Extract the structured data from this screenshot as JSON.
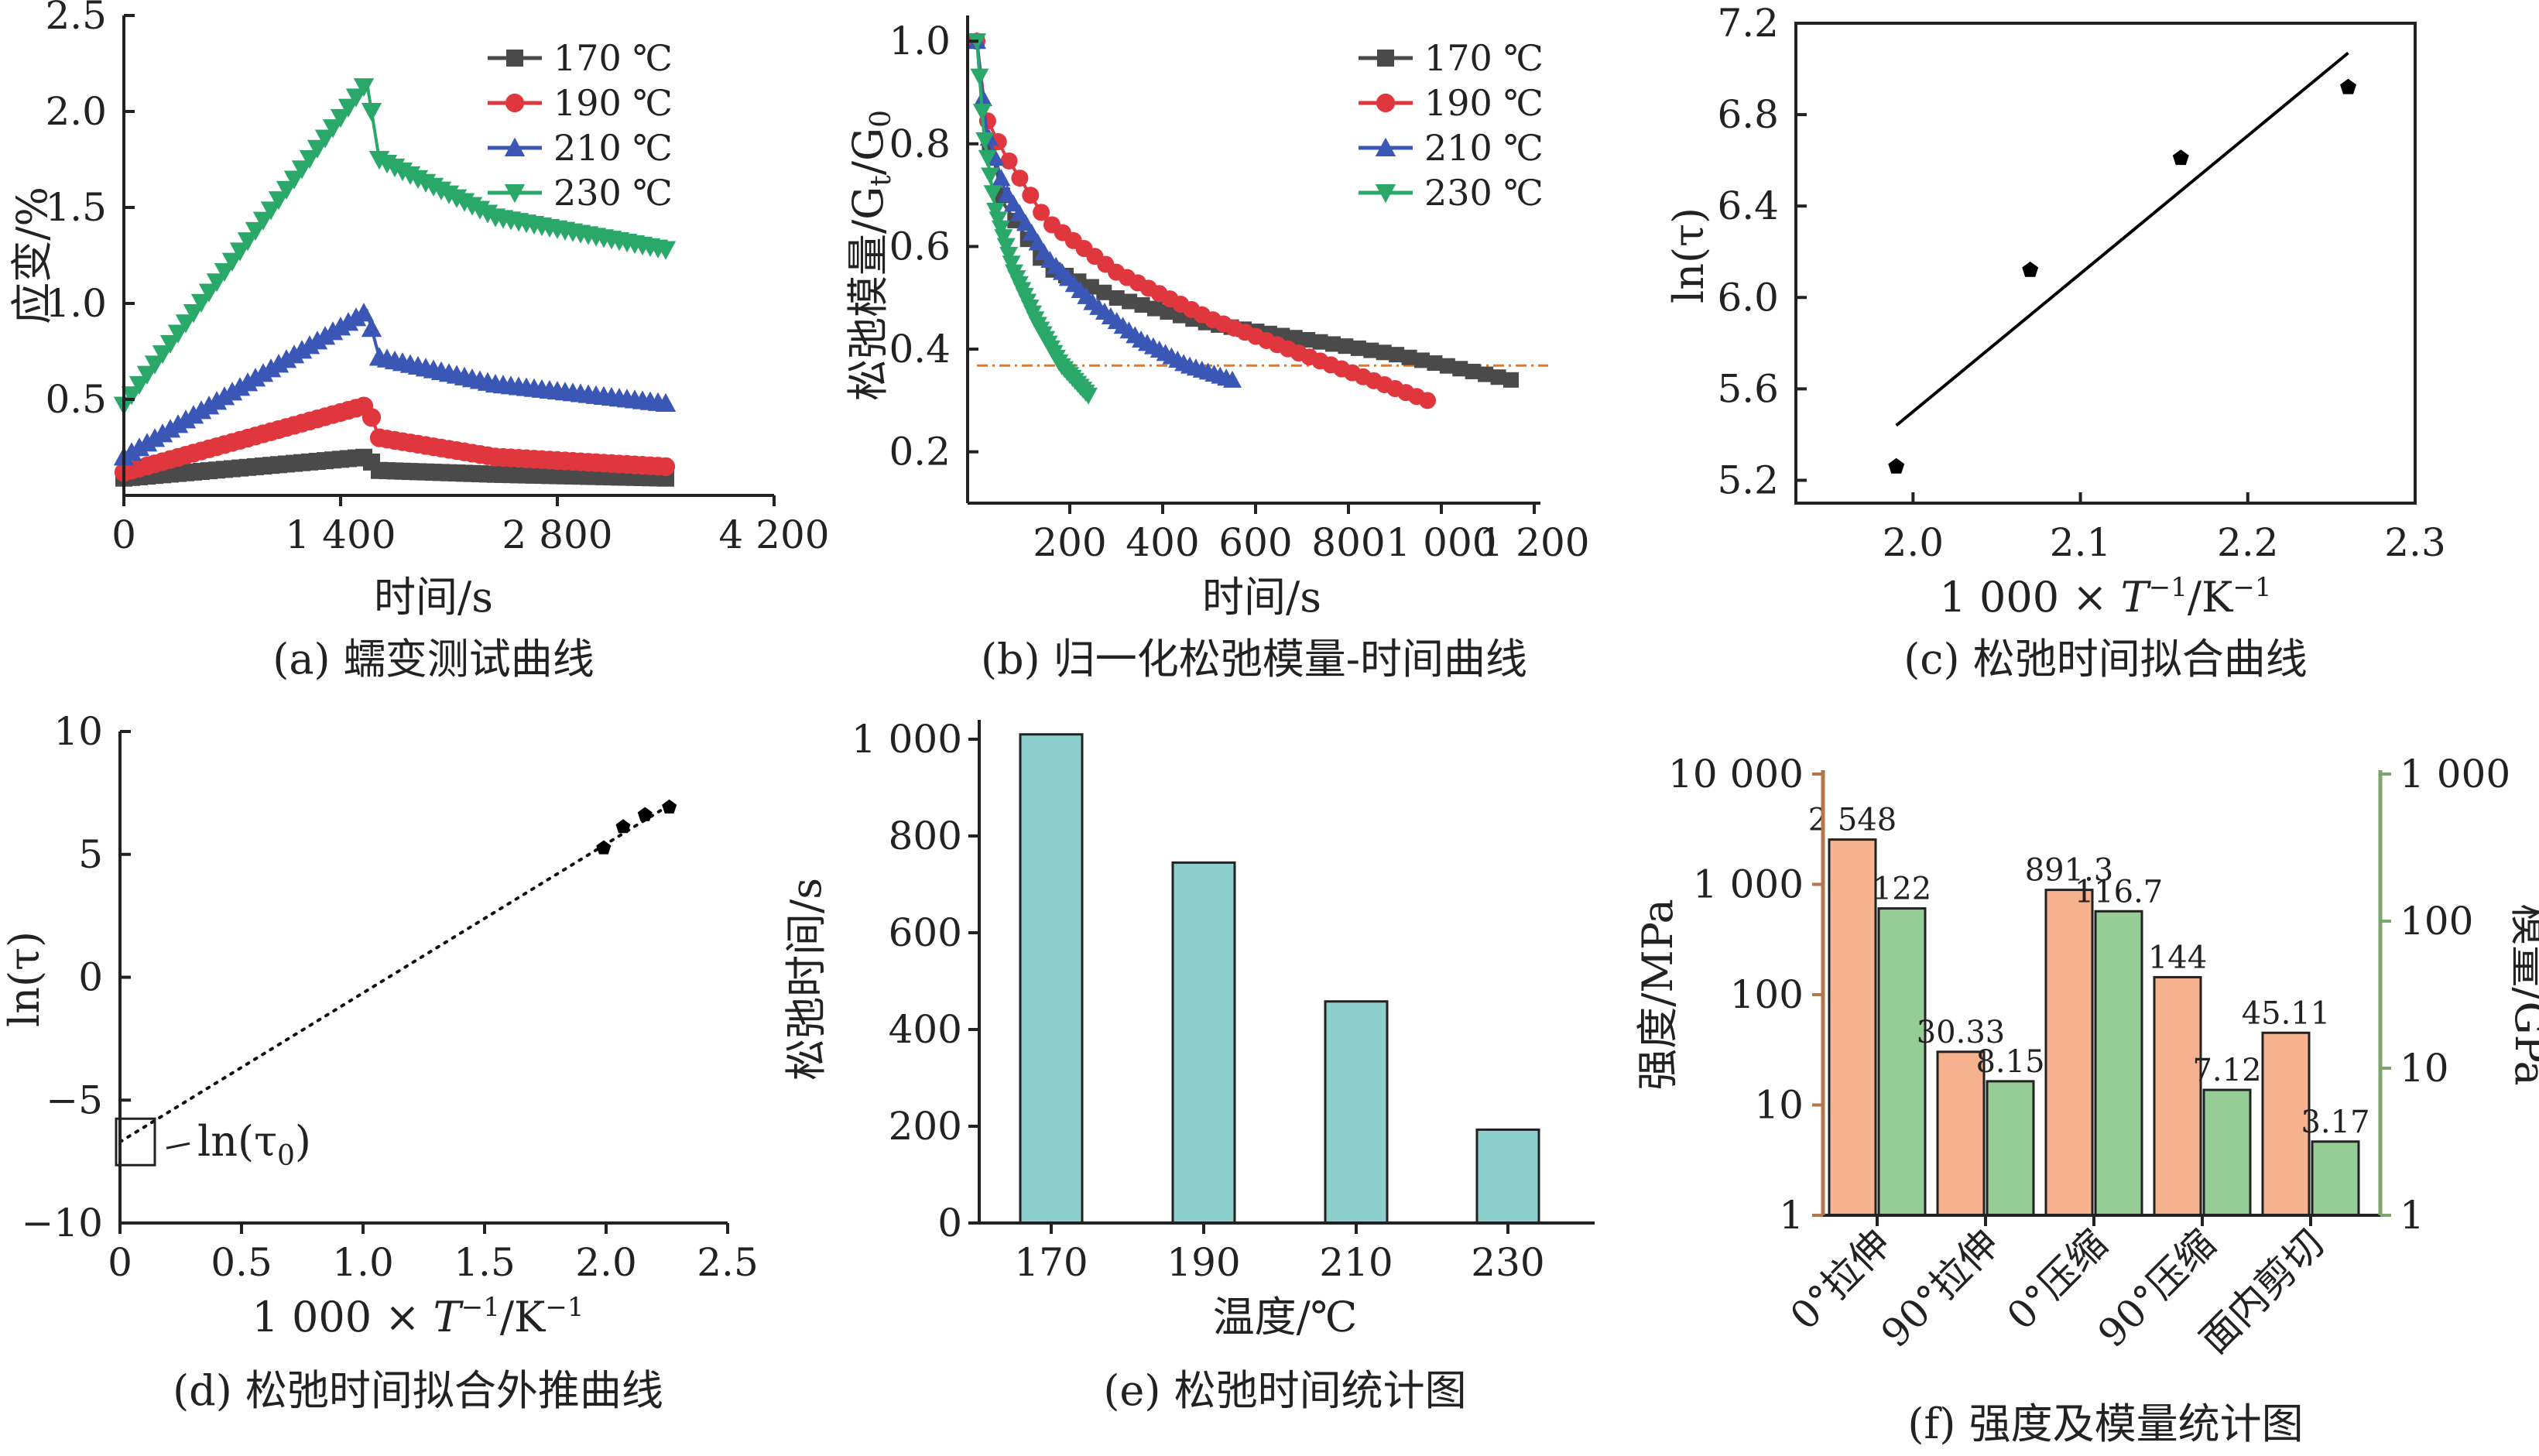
{
  "colors": {
    "s170": "#4a4a4a",
    "s190": "#e0363e",
    "s210": "#3a57b6",
    "s230": "#2aa86a",
    "bar_e": "#8ccfcc",
    "bar_strength": "#f6b28e",
    "bar_modulus": "#96cc95",
    "ref_line": "#e87722"
  },
  "panels": {
    "a": {
      "caption": "(a) 蠕变测试曲线",
      "xlabel": "时间/s",
      "ylabel": "应变/%",
      "xticks": [
        "0",
        "1 400",
        "2 800",
        "4 200"
      ],
      "yticks": [
        "0.5",
        "1.0",
        "1.5",
        "2.0",
        "2.5"
      ],
      "legend": [
        "170 ℃",
        "190 ℃",
        "210 ℃",
        "230 ℃"
      ]
    },
    "b": {
      "caption": "(b) 归一化松弛模量-时间曲线",
      "xlabel": "时间/s",
      "ylabel": "松弛模量/Gt/G0",
      "ylabel_main": "松弛模量/G",
      "ylabel_sub1": "t",
      "ylabel_mid": "/G",
      "ylabel_sub2": "0",
      "xticks": [
        "200",
        "400",
        "600",
        "800",
        "1 000",
        "1 200"
      ],
      "yticks": [
        "0.2",
        "0.4",
        "0.6",
        "0.8",
        "1.0"
      ],
      "legend": [
        "170 ℃",
        "190 ℃",
        "210 ℃",
        "230 ℃"
      ]
    },
    "c": {
      "caption": "(c) 松弛时间拟合曲线",
      "xlabel": "1 000 × T⁻¹/K⁻¹",
      "ylabel": "ln(τ)",
      "xlabel_pre": "1 000 × ",
      "xlabel_T": "T",
      "xlabel_sup": "−1",
      "xlabel_post": "/K",
      "xlabel_sup2": "−1",
      "xticks": [
        "2.0",
        "2.1",
        "2.2",
        "2.3"
      ],
      "yticks": [
        "5.2",
        "5.6",
        "6.0",
        "6.4",
        "6.8",
        "7.2"
      ]
    },
    "d": {
      "caption": "(d) 松弛时间拟合外推曲线",
      "xlabel": "1 000 × T⁻¹/K⁻¹",
      "ylabel": "ln(τ)",
      "xlabel_pre": "1 000 × ",
      "xlabel_T": "T",
      "xlabel_sup": "−1",
      "xlabel_post": "/K",
      "xlabel_sup2": "−1",
      "xticks": [
        "0",
        "0.5",
        "1.0",
        "1.5",
        "2.0",
        "2.5"
      ],
      "yticks": [
        "10",
        "5",
        "0",
        "−5",
        "−10"
      ],
      "annotation": "ln(τ0)",
      "annotation_main": "ln(τ",
      "annotation_sub": "0",
      "annotation_end": ")"
    },
    "e": {
      "caption": "(e) 松弛时间统计图",
      "xlabel": "温度/℃",
      "ylabel": "松弛时间/s",
      "xticks": [
        "170",
        "190",
        "210",
        "230"
      ],
      "yticks": [
        "0",
        "200",
        "400",
        "600",
        "800",
        "1 000"
      ]
    },
    "f": {
      "caption": "(f) 强度及模量统计图",
      "ylabel_left": "强度/MPa",
      "ylabel_right": "模量/GPa",
      "yticks_left": [
        "1",
        "10",
        "100",
        "1 000",
        "10 000"
      ],
      "yticks_right": [
        "1",
        "10",
        "100",
        "1 000"
      ],
      "data_labels_strength": [
        "2 548",
        "30.33",
        "891.3",
        "144",
        "45.11"
      ],
      "data_labels_modulus": [
        "122",
        "8.15",
        "116.7",
        "7.12",
        "3.17"
      ]
    }
  },
  "chart_data": [
    {
      "type": "line",
      "title": "(a) 蠕变测试曲线",
      "xlabel": "时间/s",
      "ylabel": "应变/%",
      "xlim": [
        0,
        4200
      ],
      "ylim": [
        0,
        2.5
      ],
      "series": [
        {
          "name": "170 ℃",
          "x": [
            0,
            1570,
            1650,
            2400,
            3500
          ],
          "y": [
            0.09,
            0.2,
            0.13,
            0.11,
            0.09
          ]
        },
        {
          "name": "190 ℃",
          "x": [
            0,
            1570,
            1650,
            2400,
            3500
          ],
          "y": [
            0.12,
            0.47,
            0.3,
            0.2,
            0.15
          ]
        },
        {
          "name": "210 ℃",
          "x": [
            0,
            1570,
            1650,
            2400,
            3500
          ],
          "y": [
            0.2,
            0.96,
            0.72,
            0.58,
            0.48
          ]
        },
        {
          "name": "230 ℃",
          "x": [
            0,
            1570,
            1650,
            2400,
            3500
          ],
          "y": [
            0.47,
            2.15,
            1.75,
            1.45,
            1.28
          ]
        }
      ]
    },
    {
      "type": "line",
      "title": "(b) 归一化松弛模量-时间曲线",
      "xlabel": "时间/s",
      "ylabel": "松弛模量/Gt/G0",
      "xlim": [
        0,
        1200
      ],
      "ylim": [
        0.1,
        1.05
      ],
      "reference_line_y": 0.368,
      "series": [
        {
          "name": "170 ℃",
          "x": [
            0,
            20,
            60,
            150,
            300,
            500,
            700,
            900,
            1150
          ],
          "y": [
            1.0,
            0.83,
            0.68,
            0.56,
            0.5,
            0.45,
            0.42,
            0.39,
            0.34
          ]
        },
        {
          "name": "190 ℃",
          "x": [
            0,
            20,
            60,
            150,
            300,
            500,
            700,
            850,
            970
          ],
          "y": [
            1.0,
            0.85,
            0.78,
            0.65,
            0.55,
            0.46,
            0.39,
            0.34,
            0.3
          ]
        },
        {
          "name": "210 ℃",
          "x": [
            0,
            20,
            60,
            150,
            250,
            350,
            450,
            550
          ],
          "y": [
            1.0,
            0.83,
            0.71,
            0.58,
            0.49,
            0.42,
            0.37,
            0.34
          ]
        },
        {
          "name": "230 ℃",
          "x": [
            0,
            15,
            40,
            80,
            130,
            180,
            240
          ],
          "y": [
            1.0,
            0.82,
            0.67,
            0.55,
            0.45,
            0.37,
            0.31
          ]
        }
      ]
    },
    {
      "type": "scatter",
      "title": "(c) 松弛时间拟合曲线",
      "xlabel": "1 000 × T⁻¹/K⁻¹",
      "ylabel": "ln(τ)",
      "xlim": [
        1.93,
        2.3
      ],
      "ylim": [
        5.1,
        7.2
      ],
      "points": {
        "x": [
          1.99,
          2.07,
          2.16,
          2.26
        ],
        "y": [
          5.26,
          6.12,
          6.61,
          6.92
        ]
      },
      "fit_line": {
        "x": [
          1.99,
          2.26
        ],
        "y": [
          5.44,
          7.07
        ]
      }
    },
    {
      "type": "scatter",
      "title": "(d) 松弛时间拟合外推曲线",
      "xlabel": "1 000 × T⁻¹/K⁻¹",
      "ylabel": "ln(τ)",
      "xlim": [
        0,
        2.5
      ],
      "ylim": [
        -10,
        10
      ],
      "points": {
        "x": [
          1.99,
          2.07,
          2.16,
          2.26
        ],
        "y": [
          5.26,
          6.12,
          6.61,
          6.92
        ]
      },
      "extrapolation_line": {
        "x": [
          0,
          2.26
        ],
        "y": [
          -6.7,
          7.0
        ]
      }
    },
    {
      "type": "bar",
      "title": "(e) 松弛时间统计图",
      "xlabel": "温度/℃",
      "ylabel": "松弛时间/s",
      "categories": [
        "170",
        "190",
        "210",
        "230"
      ],
      "values": [
        1010,
        745,
        458,
        193
      ],
      "ylim": [
        0,
        1000
      ]
    },
    {
      "type": "bar",
      "title": "(f) 强度及模量统计图",
      "categories": [
        "0°拉伸",
        "90°拉伸",
        "0°压缩",
        "90°压缩",
        "面内剪切"
      ],
      "ylabel_left": "强度/MPa",
      "ylabel_right": "模量/GPa",
      "log_scale": true,
      "ylim_left": [
        1,
        10000
      ],
      "ylim_right": [
        1,
        1000
      ],
      "series": [
        {
          "name": "强度/MPa",
          "axis": "left",
          "values": [
            2548,
            30.33,
            891.3,
            144,
            45.11
          ]
        },
        {
          "name": "模量/GPa",
          "axis": "right",
          "values": [
            122,
            8.15,
            116.7,
            7.12,
            3.17
          ]
        }
      ]
    }
  ]
}
